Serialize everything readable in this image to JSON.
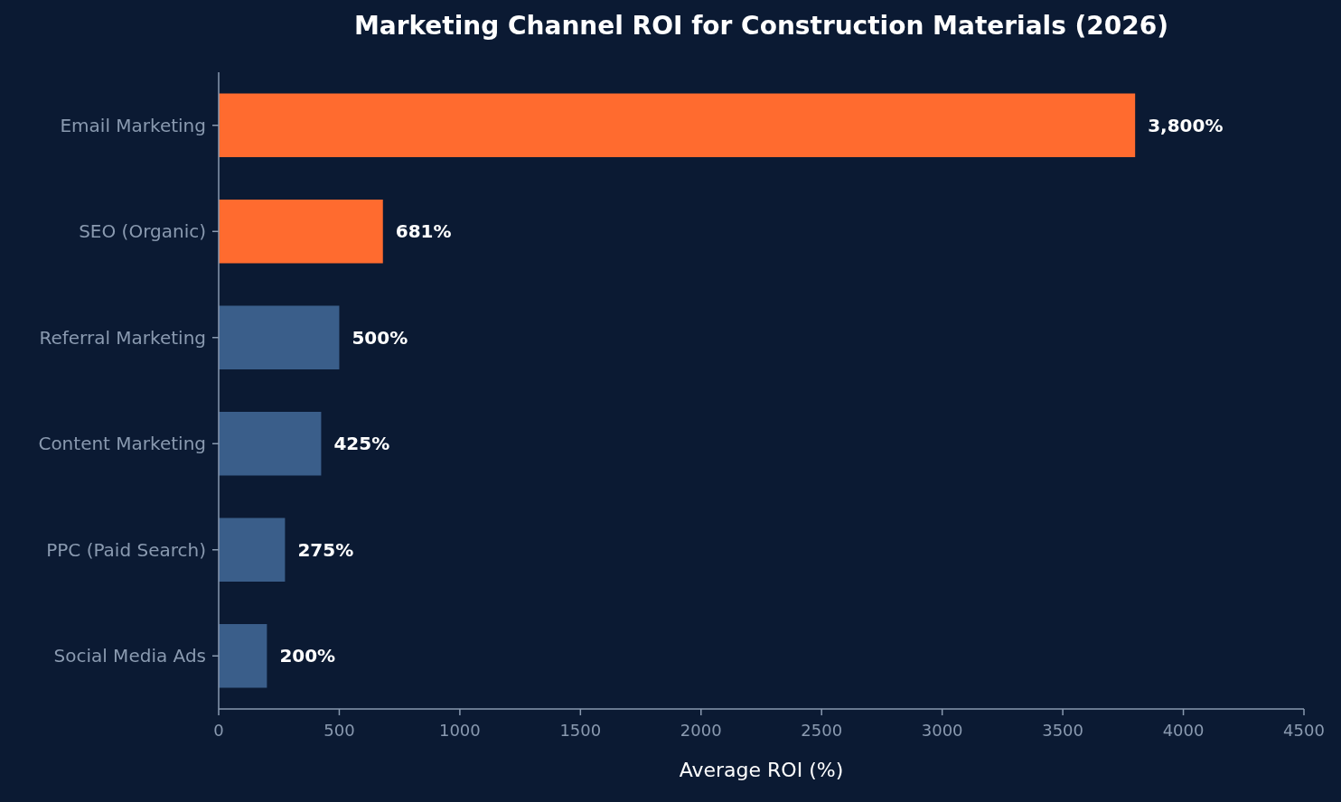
{
  "chart_data": {
    "type": "bar",
    "orientation": "horizontal",
    "title": "Marketing Channel ROI for Construction Materials (2026)",
    "xlabel": "Average ROI (%)",
    "categories": [
      "Email Marketing",
      "SEO (Organic)",
      "Referral Marketing",
      "Content Marketing",
      "PPC (Paid Search)",
      "Social Media Ads"
    ],
    "values": [
      3800,
      681,
      500,
      425,
      275,
      200
    ],
    "colors": [
      "#ff6b2f",
      "#ff6b2f",
      "#3a5e8a",
      "#3a5e8a",
      "#3a5e8a",
      "#3a5e8a"
    ],
    "value_labels": [
      "3,800%",
      "681%",
      "500%",
      "425%",
      "275%",
      "200%"
    ],
    "xlim": [
      0,
      4500
    ],
    "xticks": [
      0,
      500,
      1000,
      1500,
      2000,
      2500,
      3000,
      3500,
      4000,
      4500
    ]
  }
}
